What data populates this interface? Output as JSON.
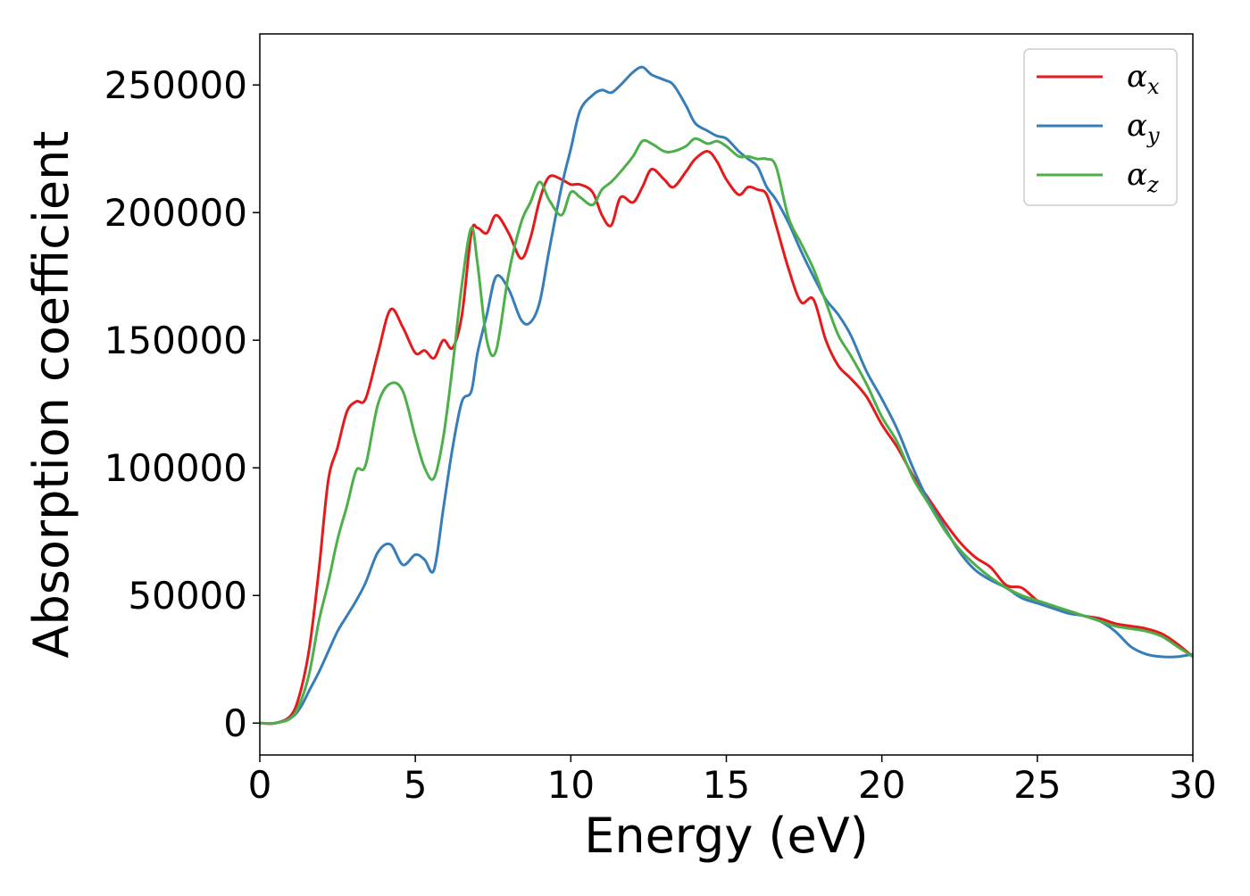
{
  "chart_data": {
    "type": "line",
    "title": "",
    "xlabel": "Energy (eV)",
    "ylabel": "Absorption coefficient",
    "xlim": [
      0,
      30
    ],
    "ylim": [
      -12500,
      270000
    ],
    "xticks": [
      0,
      5,
      10,
      15,
      20,
      25,
      30
    ],
    "yticks": [
      0,
      50000,
      100000,
      150000,
      200000,
      250000
    ],
    "xtick_labels": [
      "0",
      "5",
      "10",
      "15",
      "20",
      "25",
      "30"
    ],
    "ytick_labels": [
      "0",
      "50000",
      "100000",
      "150000",
      "200000",
      "250000"
    ],
    "grid": false,
    "legend_position": "top-right",
    "series": [
      {
        "name": "α_x",
        "legend_main": "α",
        "legend_sub": "x",
        "color": "#e41a1c",
        "x": [
          0,
          0.5,
          1.0,
          1.3,
          1.6,
          1.9,
          2.2,
          2.5,
          2.8,
          3.1,
          3.4,
          3.8,
          4.2,
          4.6,
          5.0,
          5.3,
          5.6,
          5.9,
          6.2,
          6.5,
          6.8,
          7.0,
          7.3,
          7.6,
          8.0,
          8.4,
          8.7,
          9.0,
          9.3,
          9.7,
          10.0,
          10.3,
          10.7,
          11.0,
          11.3,
          11.6,
          12.0,
          12.3,
          12.6,
          13.0,
          13.3,
          13.7,
          14.0,
          14.4,
          14.7,
          15.0,
          15.4,
          15.7,
          16.0,
          16.3,
          16.6,
          17.0,
          17.4,
          17.8,
          18.2,
          18.6,
          19.0,
          19.5,
          20.0,
          20.5,
          21.0,
          21.5,
          22.0,
          22.5,
          23.0,
          23.5,
          24.0,
          24.5,
          25.0,
          25.5,
          26.0,
          26.5,
          27.0,
          27.5,
          28.0,
          28.5,
          29.0,
          29.5,
          30.0
        ],
        "y": [
          0,
          0,
          3000,
          12000,
          30000,
          60000,
          95000,
          108000,
          122000,
          126000,
          127000,
          145000,
          162000,
          155000,
          145000,
          146000,
          143000,
          150000,
          147000,
          160000,
          192000,
          194000,
          192000,
          199000,
          192000,
          182000,
          190000,
          205000,
          214000,
          213000,
          211000,
          211000,
          208000,
          199000,
          195000,
          206000,
          204000,
          210000,
          217000,
          213000,
          210000,
          216000,
          221000,
          224000,
          220000,
          213000,
          207000,
          210000,
          209000,
          207000,
          195000,
          178000,
          165000,
          166000,
          150000,
          140000,
          135000,
          128000,
          117000,
          108000,
          97000,
          88000,
          79000,
          71000,
          65000,
          61000,
          54000,
          53000,
          48000,
          45000,
          44000,
          42000,
          41000,
          39000,
          38000,
          37000,
          35000,
          31000,
          26000
        ]
      },
      {
        "name": "α_y",
        "legend_main": "α",
        "legend_sub": "y",
        "color": "#377eb8",
        "x": [
          0,
          0.5,
          1.0,
          1.3,
          1.6,
          1.9,
          2.2,
          2.5,
          2.8,
          3.1,
          3.4,
          3.8,
          4.2,
          4.6,
          5.0,
          5.3,
          5.6,
          5.9,
          6.2,
          6.5,
          6.8,
          7.0,
          7.3,
          7.6,
          8.0,
          8.4,
          8.7,
          9.0,
          9.3,
          9.7,
          10.0,
          10.3,
          10.7,
          11.0,
          11.3,
          11.6,
          12.0,
          12.3,
          12.6,
          13.0,
          13.3,
          13.7,
          14.0,
          14.4,
          14.7,
          15.0,
          15.4,
          15.7,
          16.0,
          16.3,
          16.6,
          17.0,
          17.4,
          17.8,
          18.2,
          18.6,
          19.0,
          19.5,
          20.0,
          20.5,
          21.0,
          21.5,
          22.0,
          22.5,
          23.0,
          23.5,
          24.0,
          24.5,
          25.0,
          25.5,
          26.0,
          26.5,
          27.0,
          27.5,
          28.0,
          28.5,
          29.0,
          29.5,
          30.0
        ],
        "y": [
          0,
          0,
          2000,
          6000,
          13000,
          20000,
          28000,
          36000,
          42000,
          48000,
          55000,
          67000,
          70000,
          62000,
          66000,
          64000,
          60000,
          84000,
          108000,
          126000,
          130000,
          145000,
          160000,
          175000,
          170000,
          158000,
          157000,
          165000,
          185000,
          210000,
          225000,
          240000,
          246000,
          248000,
          247000,
          250000,
          255000,
          257000,
          254000,
          252000,
          250000,
          242000,
          235000,
          232000,
          230000,
          229000,
          224000,
          221000,
          218000,
          210000,
          205000,
          196000,
          185000,
          175000,
          166000,
          160000,
          152000,
          138000,
          127000,
          115000,
          100000,
          87000,
          77000,
          67000,
          60000,
          56000,
          53000,
          49000,
          47000,
          45000,
          43000,
          42000,
          40000,
          36000,
          30000,
          27000,
          26000,
          26000,
          27000
        ]
      },
      {
        "name": "α_z",
        "legend_main": "α",
        "legend_sub": "z",
        "color": "#4daf4a",
        "x": [
          0,
          0.5,
          1.0,
          1.3,
          1.6,
          1.9,
          2.2,
          2.5,
          2.8,
          3.1,
          3.4,
          3.8,
          4.2,
          4.6,
          5.0,
          5.3,
          5.6,
          5.9,
          6.2,
          6.5,
          6.8,
          7.0,
          7.3,
          7.6,
          8.0,
          8.4,
          8.7,
          9.0,
          9.3,
          9.7,
          10.0,
          10.3,
          10.7,
          11.0,
          11.3,
          11.6,
          12.0,
          12.3,
          12.6,
          13.0,
          13.3,
          13.7,
          14.0,
          14.4,
          14.7,
          15.0,
          15.4,
          15.7,
          16.0,
          16.3,
          16.6,
          17.0,
          17.4,
          17.8,
          18.2,
          18.6,
          19.0,
          19.5,
          20.0,
          20.5,
          21.0,
          21.5,
          22.0,
          22.5,
          23.0,
          23.5,
          24.0,
          24.5,
          25.0,
          25.5,
          26.0,
          26.5,
          27.0,
          27.5,
          28.0,
          28.5,
          29.0,
          29.5,
          30.0
        ],
        "y": [
          0,
          0,
          2000,
          8000,
          20000,
          40000,
          55000,
          72000,
          85000,
          99000,
          101000,
          125000,
          133000,
          130000,
          112000,
          100000,
          96000,
          112000,
          140000,
          172000,
          194000,
          180000,
          150000,
          146000,
          176000,
          196000,
          204000,
          212000,
          205000,
          199000,
          208000,
          206000,
          203000,
          209000,
          212000,
          216000,
          222000,
          228000,
          227000,
          224000,
          224000,
          226000,
          229000,
          227000,
          228000,
          226000,
          222000,
          222000,
          221000,
          221000,
          218000,
          198000,
          188000,
          178000,
          165000,
          152000,
          144000,
          133000,
          120000,
          110000,
          96000,
          86000,
          76000,
          68000,
          62000,
          57000,
          53000,
          50000,
          48000,
          46000,
          44000,
          42000,
          40000,
          38000,
          37000,
          36000,
          34000,
          30000,
          26000
        ]
      }
    ]
  }
}
